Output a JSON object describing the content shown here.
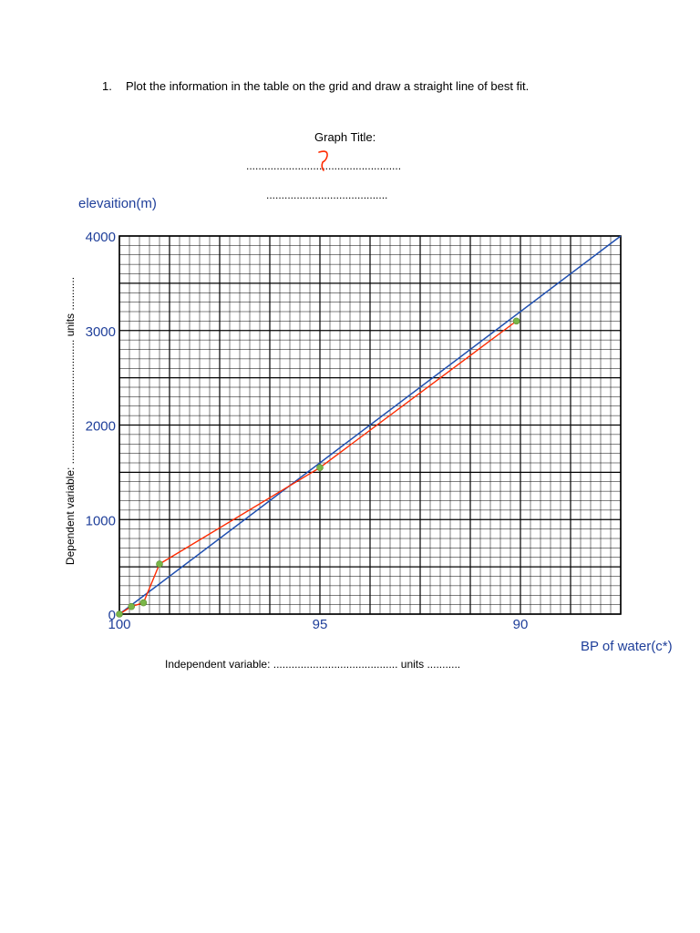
{
  "question": {
    "number": "1.",
    "text": "Plot the information in the table on the grid and draw a straight line of best fit."
  },
  "graph_title_label": "Graph Title:",
  "title_dots_1": "...................................................",
  "title_dots_2": "........................................",
  "dependent_label": "Dependent variable: ......................................... units ...........",
  "independent_label": "Independent variable: ......................................... units ...........",
  "colors": {
    "axis_text": "#1f3f9a",
    "data_line": "#ff2a00",
    "fit_line": "#1f4fb0",
    "marker": "#7ab648"
  },
  "chart_data": {
    "type": "line",
    "title": "",
    "xlabel": "BP of water(c*)",
    "ylabel": "elevaition(m)",
    "x_reversed": true,
    "xlim": [
      100,
      87.5
    ],
    "ylim": [
      0,
      4000
    ],
    "x_ticks": [
      "100",
      "95",
      "90"
    ],
    "y_ticks": [
      "0",
      "1000",
      "2000",
      "3000",
      "4000"
    ],
    "grid": true,
    "series": [
      {
        "style": "red-polyline-with-markers",
        "x": [
          100,
          99.7,
          99.4,
          99.0,
          95.0,
          90.1
        ],
        "y": [
          0,
          80,
          120,
          530,
          1550,
          3100
        ]
      },
      {
        "style": "blue-best-fit-line",
        "x": [
          100,
          87.5
        ],
        "y": [
          0,
          4000
        ]
      }
    ]
  }
}
